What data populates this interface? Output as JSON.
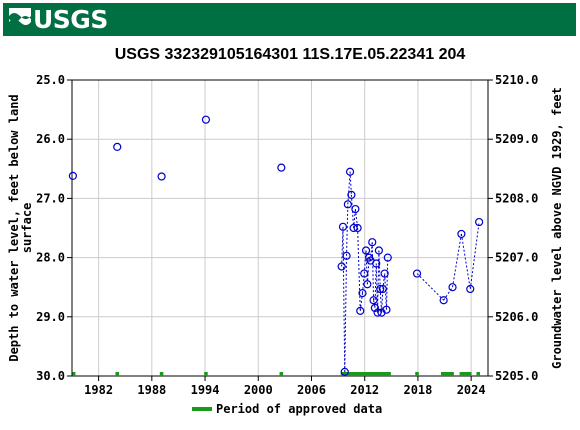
{
  "header": {
    "logo_text": "USGS",
    "logo_icon": "usgs-wave-icon",
    "background_color": "#006f41"
  },
  "chart_data": {
    "type": "scatter",
    "title": "USGS 332329105164301 11S.17E.05.22341 204",
    "ylabel_left_lines": [
      "Depth to water level, feet below land",
      "surface"
    ],
    "ylabel_right": "Groundwater level above NGVD 1929, feet",
    "xlim": [
      1979.0,
      2025.9
    ],
    "ylim_left": [
      30.0,
      25.0
    ],
    "ylim_right": [
      5205.0,
      5210.0
    ],
    "x_ticks": [
      1982,
      1988,
      1994,
      2000,
      2006,
      2012,
      2018,
      2024
    ],
    "y_ticks_left": [
      "25.0",
      "26.0",
      "27.0",
      "28.0",
      "29.0",
      "30.0"
    ],
    "y_ticks_right": [
      "5210.0",
      "5209.0",
      "5208.0",
      "5207.0",
      "5206.0",
      "5205.0"
    ],
    "grid": true,
    "point_color": "#0000cc",
    "approved_color": "#1a9a1a",
    "series": [
      {
        "points": [
          [
            1979.1,
            26.62
          ],
          [
            1984.1,
            26.13
          ],
          [
            1989.1,
            26.63
          ],
          [
            1994.1,
            25.67
          ],
          [
            2002.6,
            26.48
          ],
          [
            2009.4,
            28.15
          ],
          [
            2009.55,
            27.48
          ],
          [
            2009.75,
            29.93
          ],
          [
            2009.95,
            27.97
          ],
          [
            2010.1,
            27.1
          ],
          [
            2010.35,
            26.55
          ],
          [
            2010.5,
            26.94
          ],
          [
            2010.75,
            27.5
          ],
          [
            2010.95,
            27.18
          ],
          [
            2011.2,
            27.5
          ],
          [
            2011.5,
            28.9
          ],
          [
            2011.75,
            28.6
          ],
          [
            2011.95,
            28.27
          ],
          [
            2012.15,
            27.88
          ],
          [
            2012.3,
            28.45
          ],
          [
            2012.5,
            28.0
          ],
          [
            2012.65,
            28.05
          ],
          [
            2012.85,
            27.74
          ],
          [
            2013.0,
            28.72
          ],
          [
            2013.15,
            28.85
          ],
          [
            2013.3,
            28.1
          ],
          [
            2013.45,
            28.93
          ],
          [
            2013.6,
            27.88
          ],
          [
            2013.75,
            28.53
          ],
          [
            2013.9,
            28.93
          ],
          [
            2014.05,
            28.53
          ],
          [
            2014.25,
            28.27
          ],
          [
            2014.45,
            28.88
          ],
          [
            2014.6,
            28.0
          ],
          [
            2017.9,
            28.27
          ],
          [
            2020.9,
            28.72
          ],
          [
            2021.9,
            28.5
          ],
          [
            2022.9,
            27.6
          ],
          [
            2023.9,
            28.53
          ],
          [
            2024.9,
            27.4
          ]
        ],
        "connect_from_index": 5
      }
    ],
    "approved_periods": [
      [
        1979.05,
        1979.3
      ],
      [
        1983.9,
        1984.3
      ],
      [
        1988.9,
        1989.3
      ],
      [
        1993.9,
        1994.3
      ],
      [
        2002.4,
        2002.8
      ],
      [
        2009.3,
        2014.95
      ],
      [
        2017.7,
        2018.1
      ],
      [
        2020.6,
        2022.05
      ],
      [
        2022.7,
        2024.05
      ],
      [
        2024.6,
        2025.0
      ]
    ],
    "legend": {
      "label": "Period of approved data",
      "position": "bottom-center"
    }
  }
}
